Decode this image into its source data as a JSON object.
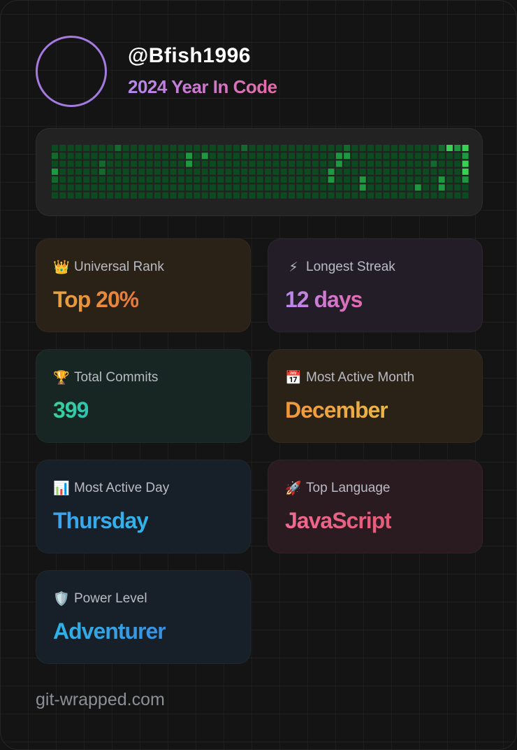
{
  "profile": {
    "username": "@Bfish1996",
    "subtitle": "2024 Year In Code"
  },
  "contribution_grid": {
    "rows": 7,
    "cols": 53,
    "colors": {
      "level1": "#0c4a1f",
      "level2": "#126b2c",
      "level3": "#1d9a3f",
      "level4": "#39d353"
    },
    "levels": [
      [
        1,
        1,
        1,
        1,
        1,
        1,
        1,
        1,
        2,
        1,
        1,
        1,
        1,
        1,
        1,
        1,
        1,
        1,
        1,
        1,
        1,
        1,
        1,
        1,
        2,
        1,
        1,
        1,
        1,
        1,
        1,
        1,
        1,
        1,
        1,
        1,
        1,
        2,
        1,
        1,
        1,
        1,
        1,
        1,
        1,
        1,
        1,
        1,
        1,
        2,
        4,
        3,
        4
      ],
      [
        2,
        1,
        1,
        1,
        1,
        1,
        1,
        1,
        1,
        1,
        1,
        1,
        1,
        1,
        1,
        1,
        1,
        3,
        1,
        3,
        1,
        1,
        1,
        1,
        1,
        1,
        1,
        1,
        1,
        1,
        1,
        1,
        1,
        1,
        1,
        1,
        3,
        3,
        1,
        1,
        1,
        1,
        1,
        1,
        1,
        1,
        1,
        1,
        1,
        1,
        1,
        1,
        3
      ],
      [
        1,
        1,
        1,
        1,
        1,
        1,
        2,
        1,
        1,
        1,
        1,
        1,
        1,
        1,
        1,
        1,
        1,
        3,
        1,
        1,
        1,
        1,
        1,
        1,
        1,
        1,
        1,
        1,
        1,
        1,
        1,
        1,
        1,
        1,
        1,
        1,
        3,
        1,
        1,
        1,
        1,
        1,
        1,
        1,
        1,
        1,
        1,
        1,
        2,
        1,
        1,
        1,
        4
      ],
      [
        3,
        1,
        1,
        1,
        1,
        1,
        2,
        1,
        1,
        1,
        1,
        1,
        1,
        1,
        1,
        1,
        1,
        1,
        1,
        1,
        1,
        1,
        1,
        1,
        1,
        1,
        1,
        1,
        1,
        1,
        1,
        1,
        1,
        1,
        1,
        3,
        1,
        1,
        1,
        1,
        1,
        1,
        1,
        1,
        1,
        1,
        1,
        1,
        1,
        1,
        1,
        1,
        4
      ],
      [
        2,
        1,
        1,
        1,
        1,
        1,
        1,
        1,
        1,
        1,
        1,
        1,
        1,
        1,
        1,
        1,
        1,
        1,
        1,
        1,
        1,
        1,
        1,
        1,
        1,
        1,
        1,
        1,
        1,
        1,
        1,
        1,
        1,
        1,
        1,
        3,
        1,
        1,
        1,
        3,
        1,
        1,
        1,
        1,
        1,
        1,
        1,
        1,
        1,
        3,
        1,
        1,
        3
      ],
      [
        1,
        1,
        1,
        1,
        1,
        1,
        1,
        1,
        1,
        1,
        1,
        1,
        1,
        1,
        1,
        1,
        1,
        1,
        1,
        1,
        1,
        1,
        1,
        1,
        1,
        1,
        1,
        1,
        1,
        1,
        1,
        1,
        1,
        1,
        1,
        1,
        1,
        1,
        1,
        3,
        1,
        1,
        1,
        1,
        1,
        1,
        3,
        1,
        1,
        3,
        1,
        1,
        1
      ],
      [
        1,
        1,
        1,
        1,
        1,
        1,
        1,
        1,
        1,
        1,
        1,
        1,
        1,
        1,
        1,
        1,
        1,
        1,
        1,
        1,
        1,
        1,
        1,
        1,
        1,
        1,
        1,
        1,
        1,
        1,
        1,
        1,
        1,
        1,
        1,
        1,
        1,
        1,
        1,
        1,
        1,
        1,
        1,
        1,
        1,
        1,
        1,
        1,
        1,
        1,
        1,
        1,
        1
      ]
    ]
  },
  "stats": [
    {
      "id": "universal-rank",
      "icon": "crown-icon",
      "glyph": "👑",
      "label": "Universal Rank",
      "value": "Top 20%",
      "gradient": [
        "#e8a33d",
        "#e8783a"
      ],
      "bg": "#2a2217"
    },
    {
      "id": "longest-streak",
      "icon": "lightning-icon",
      "glyph": "⚡",
      "label": "Longest Streak",
      "value": "12 days",
      "gradient": [
        "#b98af0",
        "#e26ab0"
      ],
      "bg": "#231d28"
    },
    {
      "id": "total-commits",
      "icon": "trophy-icon",
      "glyph": "🏆",
      "label": "Total Commits",
      "value": "399",
      "gradient": [
        "#37d39a",
        "#2ec4b0"
      ],
      "bg": "#172622"
    },
    {
      "id": "most-active-month",
      "icon": "calendar-icon",
      "glyph": "📅",
      "label": "Most Active Month",
      "value": "December",
      "gradient": [
        "#f0963c",
        "#e8b84a"
      ],
      "bg": "#2a2217"
    },
    {
      "id": "most-active-day",
      "icon": "bar-chart-icon",
      "glyph": "📊",
      "label": "Most Active Day",
      "value": "Thursday",
      "gradient": [
        "#3aa2ee",
        "#32b4e8"
      ],
      "bg": "#172028"
    },
    {
      "id": "top-language",
      "icon": "rocket-icon",
      "glyph": "🚀",
      "label": "Top Language",
      "value": "JavaScript",
      "gradient": [
        "#f06a90",
        "#e45a78"
      ],
      "bg": "#2a1b20"
    },
    {
      "id": "power-level",
      "icon": "shield-icon",
      "glyph": "🛡️",
      "label": "Power Level",
      "value": "Adventurer",
      "gradient": [
        "#2fb3e6",
        "#3b8fe0"
      ],
      "bg": "#172028"
    }
  ],
  "footer": {
    "text": "git-wrapped.com"
  }
}
